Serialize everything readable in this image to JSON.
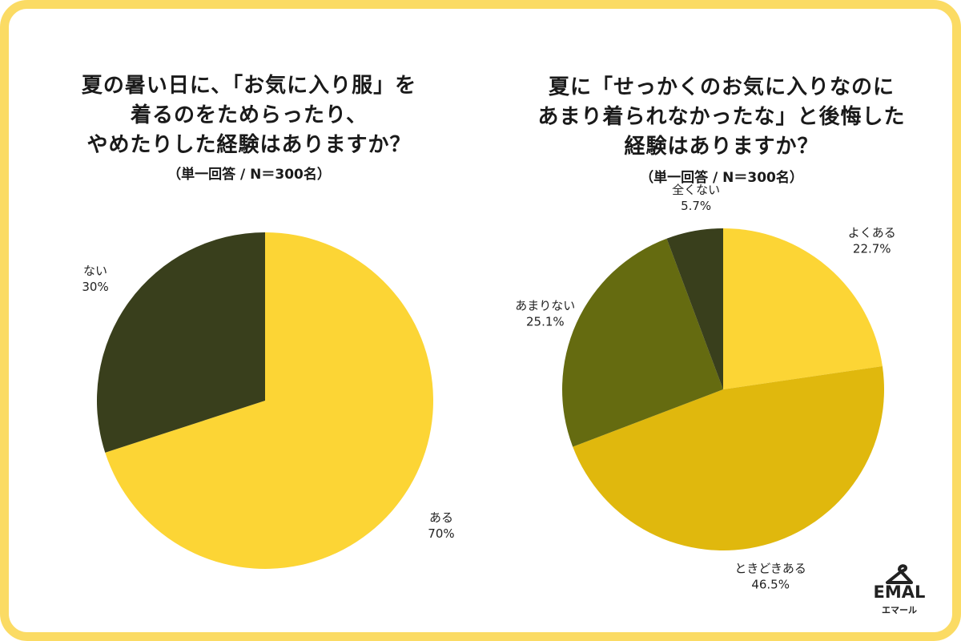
{
  "colors": {
    "frame": "#fbdb64",
    "background": "#ffffff"
  },
  "chart_data": [
    {
      "type": "pie",
      "title_lines": [
        "夏の暑い日に、「お気に入り服」を",
        "着るのをためらったり、",
        "やめたりした経験はありますか？"
      ],
      "note": "（単一回答 / N＝300名）",
      "categories": [
        "ある",
        "ない"
      ],
      "values": [
        70,
        30
      ],
      "value_labels": [
        "70%",
        "30%"
      ],
      "colors": [
        "#fcd535",
        "#393f1c"
      ],
      "start": "12 o'clock",
      "direction": "clockwise"
    },
    {
      "type": "pie",
      "title_lines": [
        "夏に「せっかくのお気に入りなのに",
        "あまり着られなかったな」と後悔した",
        "経験はありますか？"
      ],
      "note": "（単一回答 / N＝300名）",
      "categories": [
        "よくある",
        "ときどきある",
        "あまりない",
        "全くない"
      ],
      "values": [
        22.7,
        46.5,
        25.1,
        5.7
      ],
      "value_labels": [
        "22.7%",
        "46.5%",
        "25.1%",
        "5.7%"
      ],
      "colors": [
        "#fcd535",
        "#e0b80d",
        "#656b10",
        "#393f1c"
      ],
      "start": "12 o'clock",
      "direction": "clockwise"
    }
  ],
  "logo": {
    "brand": "EMAL",
    "kana": "エマール",
    "icon": "hanger-icon"
  }
}
